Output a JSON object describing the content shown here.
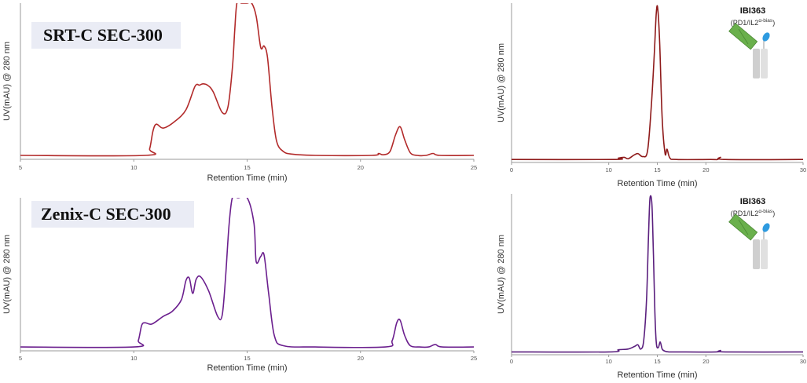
{
  "chart_data": [
    {
      "type": "line",
      "title": "SRT-C SEC-300",
      "xlabel": "Retention Time (min)",
      "ylabel": "UV(mAU) @ 280 nm",
      "xlim": [
        5,
        25
      ],
      "xticks": [
        "5",
        "10",
        "15",
        "20",
        "25"
      ],
      "series": [
        {
          "color": "#b22a2a",
          "x": [
            5,
            10.5,
            10.7,
            10.85,
            11.0,
            11.3,
            11.8,
            12.3,
            12.7,
            12.9,
            13.05,
            13.25,
            13.5,
            13.9,
            14.15,
            14.35,
            14.45,
            14.55,
            14.75,
            15.0,
            15.2,
            15.4,
            15.6,
            15.75,
            15.9,
            16.1,
            16.3,
            16.6,
            17.0,
            18.0,
            20.5,
            20.8,
            21.0,
            21.3,
            21.55,
            21.75,
            21.95,
            22.2,
            22.5,
            22.9,
            23.2,
            23.5,
            25
          ],
          "y": [
            3,
            3,
            8,
            22,
            27,
            24,
            29,
            38,
            56,
            57,
            58,
            57,
            52,
            36,
            40,
            70,
            98,
            120,
            120,
            120,
            120,
            110,
            86,
            87,
            78,
            40,
            14,
            6,
            4,
            3,
            3,
            4.5,
            3.5,
            6,
            19,
            25,
            15,
            5,
            3,
            3,
            4.5,
            3,
            3
          ]
        }
      ]
    },
    {
      "type": "line",
      "title": "Zenix-C SEC-300",
      "xlabel": "Retention Time (min)",
      "ylabel": "UV(mAU) @ 280 nm",
      "xlim": [
        5,
        25
      ],
      "xticks": [
        "5",
        "10",
        "15",
        "20",
        "25"
      ],
      "series": [
        {
          "color": "#6b1f8e",
          "x": [
            5,
            10.0,
            10.2,
            10.35,
            10.5,
            10.8,
            11.3,
            11.7,
            12.1,
            12.3,
            12.45,
            12.6,
            12.75,
            12.95,
            13.3,
            13.7,
            13.9,
            14.05,
            14.2,
            14.35,
            14.6,
            15.0,
            15.3,
            15.4,
            15.6,
            15.75,
            15.95,
            16.2,
            16.6,
            18.0,
            21.1,
            21.4,
            21.6,
            21.75,
            21.95,
            22.2,
            22.6,
            23.0,
            23.3,
            23.6,
            25
          ],
          "y": [
            3,
            3,
            8,
            20,
            22,
            21,
            27,
            31,
            40,
            55,
            57,
            45,
            56,
            58,
            47,
            27,
            28,
            58,
            98,
            120,
            120,
            120,
            100,
            70,
            74,
            75,
            45,
            12,
            4,
            3,
            3,
            8,
            22,
            24,
            12,
            4,
            3,
            3,
            5,
            3,
            3
          ]
        }
      ]
    },
    {
      "type": "line",
      "title": "IBI363",
      "subtitle_prefix": "(PD1/IL2",
      "subtitle_sup": "α-bias",
      "subtitle_suffix": ")",
      "xlabel": "Retention Time (min)",
      "ylabel": "UV(mAU) @ 280 nm",
      "xlim": [
        0,
        30
      ],
      "xticks": [
        "0",
        "10",
        "15",
        "20",
        "30"
      ],
      "series": [
        {
          "color": "#8e1a1a",
          "x": [
            0,
            10.5,
            11.0,
            11.6,
            12.0,
            12.6,
            13.0,
            13.5,
            14.0,
            14.4,
            14.7,
            14.9,
            15.05,
            15.25,
            15.5,
            15.8,
            16.0,
            16.3,
            17.0,
            20.5,
            21.2,
            21.5,
            22.0,
            30
          ],
          "y": [
            2,
            2,
            3,
            3.5,
            2.5,
            5,
            6,
            4,
            8,
            40,
            75,
            102,
            104,
            80,
            30,
            6,
            9,
            3,
            2,
            2,
            2,
            3.5,
            2,
            2
          ]
        }
      ]
    },
    {
      "type": "line",
      "title": "IBI363",
      "subtitle_prefix": "(PD1/IL2",
      "subtitle_sup": "α-bias",
      "subtitle_suffix": ")",
      "xlabel": "Retention Time (min)",
      "ylabel": "UV(mAU) @ 280 nm",
      "xlim": [
        0,
        30
      ],
      "xticks": [
        "0",
        "10",
        "15",
        "20",
        "30"
      ],
      "series": [
        {
          "color": "#5a1f7e",
          "x": [
            0,
            10.0,
            11.0,
            12.0,
            12.7,
            13.0,
            13.3,
            13.6,
            13.9,
            14.1,
            14.25,
            14.45,
            14.6,
            14.75,
            14.9,
            15.1,
            15.3,
            15.5,
            15.8,
            16.2,
            17.0,
            21.0,
            21.5,
            22.0,
            30
          ],
          "y": [
            2,
            2,
            3.5,
            4,
            6,
            7,
            4,
            10,
            40,
            85,
            110,
            105,
            70,
            30,
            8,
            5,
            9,
            4,
            2.5,
            2,
            2,
            2,
            3,
            2,
            2
          ]
        }
      ]
    }
  ]
}
